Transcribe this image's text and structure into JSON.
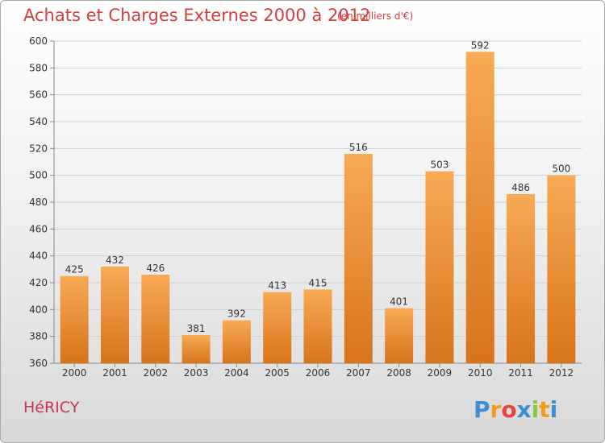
{
  "header": {
    "title": "Achats et Charges Externes 2000 à 2012",
    "subtitle": "(en milliers d'€)"
  },
  "footer": {
    "commune": "HéRICY",
    "logo_text": "Proxiti"
  },
  "colors": {
    "title": "#d2403d",
    "bar_light": "#f6a54e",
    "bar_dark": "#d9781e",
    "grid": "#cccccc"
  },
  "chart_data": {
    "type": "bar",
    "title": "Achats et Charges Externes 2000 à 2012",
    "subtitle": "(en milliers d'€)",
    "categories": [
      "2000",
      "2001",
      "2002",
      "2003",
      "2004",
      "2005",
      "2006",
      "2007",
      "2008",
      "2009",
      "2010",
      "2011",
      "2012"
    ],
    "values": [
      425,
      432,
      426,
      381,
      392,
      413,
      415,
      516,
      401,
      503,
      592,
      486,
      500
    ],
    "ylim": [
      360,
      600
    ],
    "yticks": [
      360,
      380,
      400,
      420,
      440,
      460,
      480,
      500,
      520,
      540,
      560,
      580,
      600
    ],
    "grid": true,
    "data_labels": true
  }
}
